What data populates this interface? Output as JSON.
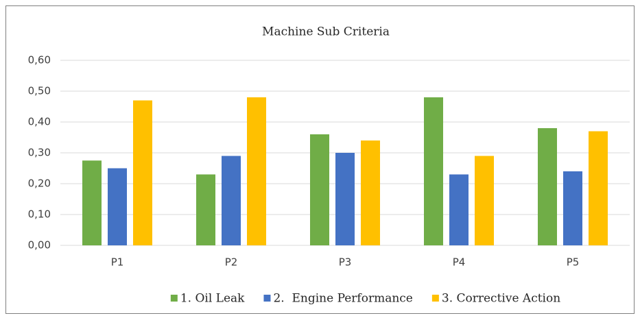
{
  "chart_data": {
    "type": "bar",
    "title": "Machine Sub Criteria",
    "categories": [
      "P1",
      "P2",
      "P3",
      "P4",
      "P5"
    ],
    "series": [
      {
        "name": "1. Oil Leak",
        "color": "#70ad47",
        "values": [
          0.275,
          0.23,
          0.36,
          0.48,
          0.38
        ]
      },
      {
        "name": "2.  Engine Performance",
        "color": "#4472c4",
        "values": [
          0.25,
          0.29,
          0.3,
          0.23,
          0.24
        ]
      },
      {
        "name": "3. Corrective Action",
        "color": "#ffc000",
        "values": [
          0.47,
          0.48,
          0.34,
          0.29,
          0.37
        ]
      }
    ],
    "ylim": [
      0,
      0.6
    ],
    "yticks": [
      {
        "value": 0,
        "label": "0,00"
      },
      {
        "value": 0.1,
        "label": "0,10"
      },
      {
        "value": 0.2,
        "label": "0,20"
      },
      {
        "value": 0.3,
        "label": "0,30"
      },
      {
        "value": 0.4,
        "label": "0,40"
      },
      {
        "value": 0.5,
        "label": "0,50"
      },
      {
        "value": 0.6,
        "label": "0,60"
      }
    ],
    "grid": true,
    "legend": "bottom"
  }
}
